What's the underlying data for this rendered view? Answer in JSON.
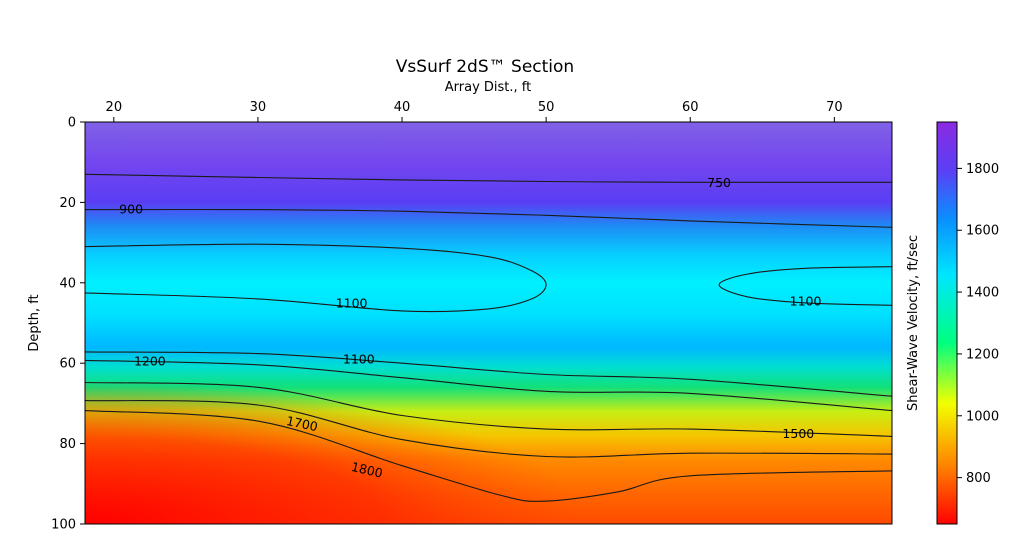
{
  "chart_data": {
    "type": "heatmap",
    "title": "VsSurf 2dS™ Section",
    "xlabel": "Array Dist., ft",
    "ylabel": "Depth, ft",
    "colorbar_label": "Shear-Wave Velocity, ft/sec",
    "x_axis_position": "top",
    "y_inverted": true,
    "xlim": [
      18,
      74
    ],
    "ylim": [
      0,
      100
    ],
    "x_ticks": [
      "20",
      "30",
      "40",
      "50",
      "60",
      "70"
    ],
    "y_ticks": [
      "0",
      "20",
      "40",
      "60",
      "80",
      "100"
    ],
    "colorbar_range": [
      650,
      1950
    ],
    "colorbar_ticks": [
      "800",
      "1000",
      "1200",
      "1400",
      "1600",
      "1800"
    ],
    "colormap": [
      "#8a2be2",
      "#5b3ff5",
      "#0b8eff",
      "#00e5ff",
      "#00ff7f",
      "#f2ff00",
      "#ff7f00",
      "#ff0000"
    ],
    "contour_labels": [
      {
        "text": "750",
        "x": 62,
        "y": 15
      },
      {
        "text": "900",
        "x": 21.2,
        "y": 21.6
      },
      {
        "text": "1100",
        "x": 36.5,
        "y": 45
      },
      {
        "text": "1100",
        "x": 68,
        "y": 44.5
      },
      {
        "text": "1100",
        "x": 37,
        "y": 59
      },
      {
        "text": "1200",
        "x": 22.5,
        "y": 59.5
      },
      {
        "text": "1700",
        "x": 33,
        "y": 75
      },
      {
        "text": "1500",
        "x": 67.5,
        "y": 77.5
      },
      {
        "text": "1800",
        "x": 37.5,
        "y": 86.5
      }
    ],
    "contours": [
      {
        "level": 750,
        "points": [
          [
            18,
            13
          ],
          [
            30,
            13.8
          ],
          [
            40,
            14.4
          ],
          [
            50,
            14.8
          ],
          [
            60,
            15
          ],
          [
            74,
            15
          ]
        ]
      },
      {
        "level": 900,
        "points": [
          [
            18,
            21.8
          ],
          [
            30,
            21.8
          ],
          [
            40,
            22.2
          ],
          [
            50,
            23.2
          ],
          [
            60,
            24.6
          ],
          [
            74,
            26.2
          ]
        ]
      },
      {
        "level": 1100,
        "points": [
          [
            18,
            31
          ],
          [
            30,
            30.4
          ],
          [
            40,
            31.4
          ],
          [
            46,
            33.5
          ],
          [
            49,
            37
          ],
          [
            50,
            40.5
          ],
          [
            49,
            44
          ],
          [
            46,
            46.5
          ],
          [
            40,
            47
          ],
          [
            30,
            44
          ],
          [
            18,
            42.5
          ]
        ]
      },
      {
        "level": 1100,
        "points": [
          [
            74,
            36
          ],
          [
            68,
            36.4
          ],
          [
            64,
            37.8
          ],
          [
            62,
            40.5
          ],
          [
            64,
            43.5
          ],
          [
            68,
            45
          ],
          [
            74,
            45.6
          ]
        ]
      },
      {
        "level": 1100,
        "points": [
          [
            18,
            57.2
          ],
          [
            30,
            57.6
          ],
          [
            40,
            60
          ],
          [
            50,
            62.8
          ],
          [
            60,
            64
          ],
          [
            74,
            68.2
          ]
        ]
      },
      {
        "level": 1200,
        "points": [
          [
            18,
            59.3
          ],
          [
            30,
            60.4
          ],
          [
            40,
            63.6
          ],
          [
            50,
            67
          ],
          [
            60,
            67.5
          ],
          [
            74,
            71.8
          ]
        ]
      },
      {
        "level": 1500,
        "points": [
          [
            18,
            64.8
          ],
          [
            30,
            66
          ],
          [
            40,
            73
          ],
          [
            50,
            76.4
          ],
          [
            60,
            76.4
          ],
          [
            74,
            78.2
          ]
        ]
      },
      {
        "level": 1700,
        "points": [
          [
            18,
            69.3
          ],
          [
            30,
            70.4
          ],
          [
            40,
            79
          ],
          [
            50,
            83.2
          ],
          [
            60,
            82.4
          ],
          [
            74,
            82.6
          ]
        ]
      },
      {
        "level": 1800,
        "points": [
          [
            18,
            71.8
          ],
          [
            30,
            74.4
          ],
          [
            40,
            85.5
          ],
          [
            47,
            93
          ],
          [
            50,
            94.3
          ],
          [
            55,
            92
          ],
          [
            60,
            88
          ],
          [
            74,
            86.8
          ]
        ]
      }
    ]
  }
}
